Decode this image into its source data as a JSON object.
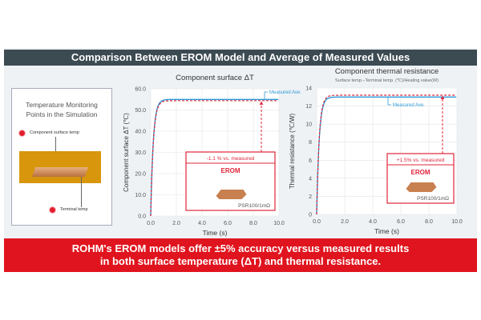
{
  "header": {
    "title": "Comparison Between EROM Model and Average of Measured Values"
  },
  "left_panel": {
    "title_line1": "Temperature Monitoring",
    "title_line2": "Points in the Simulation",
    "label_surface": "Component surface temp",
    "label_terminal": "Terminal temp"
  },
  "banner": {
    "line1": "ROHM's EROM models offer ±5% accuracy versus measured results",
    "line2": "in both surface temperature (ΔT) and thermal resistance."
  },
  "colors": {
    "measured": "#2e9ad8",
    "erom": "#e0243a",
    "banner": "#e0141e",
    "header": "#3c4a52"
  },
  "chart_data": [
    {
      "type": "line",
      "title": "Component surface ΔT",
      "subtitle": "",
      "xlabel": "Time (s)",
      "ylabel": "Component surface ΔT (℃)",
      "xlim": [
        0,
        10
      ],
      "ylim": [
        0,
        60
      ],
      "xticks": [
        "0.0",
        "2.0",
        "4.0",
        "6.0",
        "8.0",
        "10.0"
      ],
      "yticks": [
        "0.0",
        "10.0",
        "20.0",
        "30.0",
        "40.0",
        "50.0",
        "60.0"
      ],
      "series": [
        {
          "name": "Measured Ave.",
          "style": "solid",
          "steady": 55.0,
          "tau": 0.2
        },
        {
          "name": "EROM",
          "style": "dashed",
          "steady": 54.4,
          "tau": 0.2
        }
      ],
      "annotation": {
        "measured_label": "Measured Ave.",
        "diff": "-1.1 % vs. measured",
        "model": "EROM",
        "part": "PSR100/1mΩ"
      }
    },
    {
      "type": "line",
      "title": "Component thermal resistance",
      "subtitle": "Surface temp.−Terminal temp. (℃)/Heating value(W)",
      "xlabel": "Time (s)",
      "ylabel": "Thermal resistance (℃/W)",
      "xlim": [
        0,
        10
      ],
      "ylim": [
        0,
        14
      ],
      "xticks": [
        "0.0",
        "2.0",
        "4.0",
        "6.0",
        "8.0",
        "10.0"
      ],
      "yticks": [
        "0",
        "2",
        "4",
        "6",
        "8",
        "10",
        "12",
        "14"
      ],
      "series": [
        {
          "name": "Measured Ave.",
          "style": "solid",
          "steady": 13.0,
          "tau": 0.18
        },
        {
          "name": "EROM",
          "style": "dashed",
          "steady": 13.2,
          "tau": 0.18
        }
      ],
      "annotation": {
        "measured_label": "Measured Ave.",
        "diff": "+1.5% vs. measured",
        "model": "EROM",
        "part": "PSR100/1mΩ"
      }
    }
  ]
}
